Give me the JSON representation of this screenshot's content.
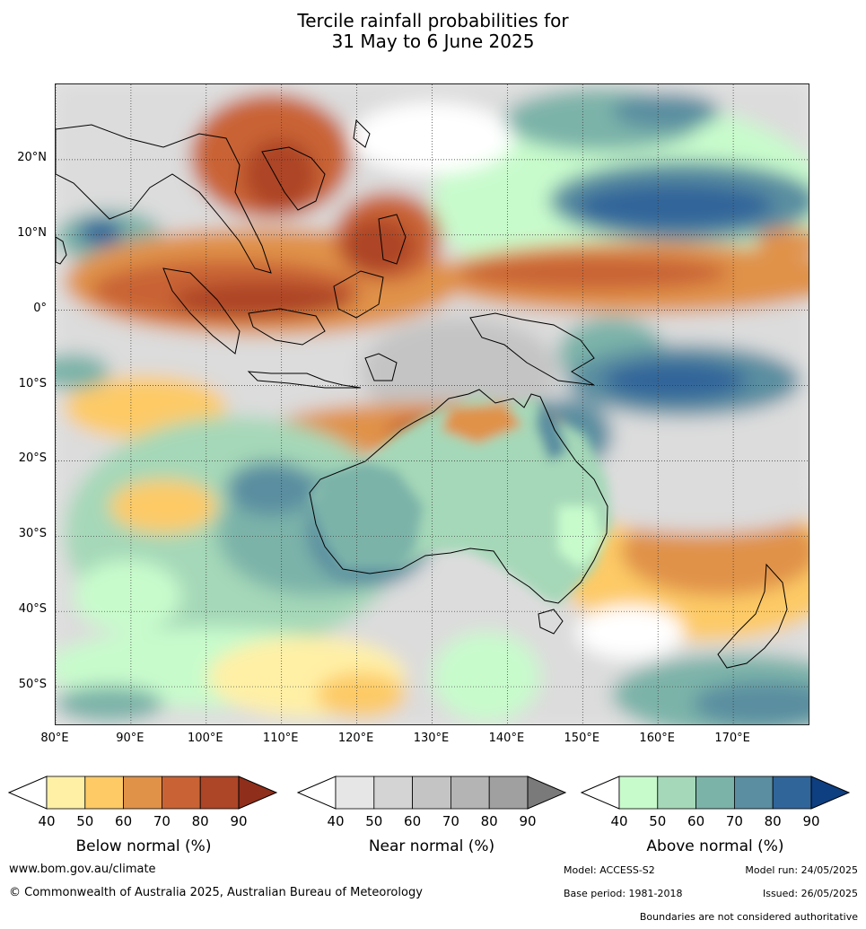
{
  "title": {
    "line1": "Tercile rainfall probabilities for",
    "line2": "31 May to 6 June 2025"
  },
  "map": {
    "lon_range": [
      80,
      180
    ],
    "lat_range": [
      -55,
      30
    ],
    "lat_labels": [
      {
        "lat": 20,
        "text": "20°N"
      },
      {
        "lat": 10,
        "text": "10°N"
      },
      {
        "lat": 0,
        "text": "0°"
      },
      {
        "lat": -10,
        "text": "10°S"
      },
      {
        "lat": -20,
        "text": "20°S"
      },
      {
        "lat": -30,
        "text": "30°S"
      },
      {
        "lat": -40,
        "text": "40°S"
      },
      {
        "lat": -50,
        "text": "50°S"
      }
    ],
    "lon_labels": [
      {
        "lon": 80,
        "text": "80°E"
      },
      {
        "lon": 90,
        "text": "90°E"
      },
      {
        "lon": 100,
        "text": "100°E"
      },
      {
        "lon": 110,
        "text": "110°E"
      },
      {
        "lon": 120,
        "text": "120°E"
      },
      {
        "lon": 130,
        "text": "130°E"
      },
      {
        "lon": 140,
        "text": "140°E"
      },
      {
        "lon": 150,
        "text": "150°E"
      },
      {
        "lon": 160,
        "text": "160°E"
      },
      {
        "lon": 170,
        "text": "170°E"
      }
    ]
  },
  "legends": {
    "ticks": [
      "40",
      "50",
      "60",
      "70",
      "80",
      "90"
    ],
    "below": {
      "title": "Below normal (%)",
      "colors": [
        "#fff0a6",
        "#fdca66",
        "#e09248",
        "#c96335",
        "#ad4527",
        "#8f2e1a"
      ]
    },
    "near": {
      "title": "Near normal (%)",
      "colors": [
        "#e6e6e6",
        "#d4d4d4",
        "#c4c4c4",
        "#b4b4b4",
        "#a0a0a0",
        "#7a7a7a"
      ]
    },
    "above": {
      "title": "Above normal (%)",
      "colors": [
        "#c8fbcc",
        "#a5d8b8",
        "#7bb3a9",
        "#5a8ea0",
        "#30659a",
        "#0e3f80"
      ]
    }
  },
  "footer": {
    "url": "www.bom.gov.au/climate",
    "copyright": "© Commonwealth of Australia 2025, Australian Bureau of Meteorology",
    "model": "Model: ACCESS-S2",
    "model_run": "Model run: 24/05/2025",
    "base_period": "Base period: 1981-2018",
    "issued": "Issued: 26/05/2025",
    "disclaimer": "Boundaries are not considered authoritative"
  }
}
